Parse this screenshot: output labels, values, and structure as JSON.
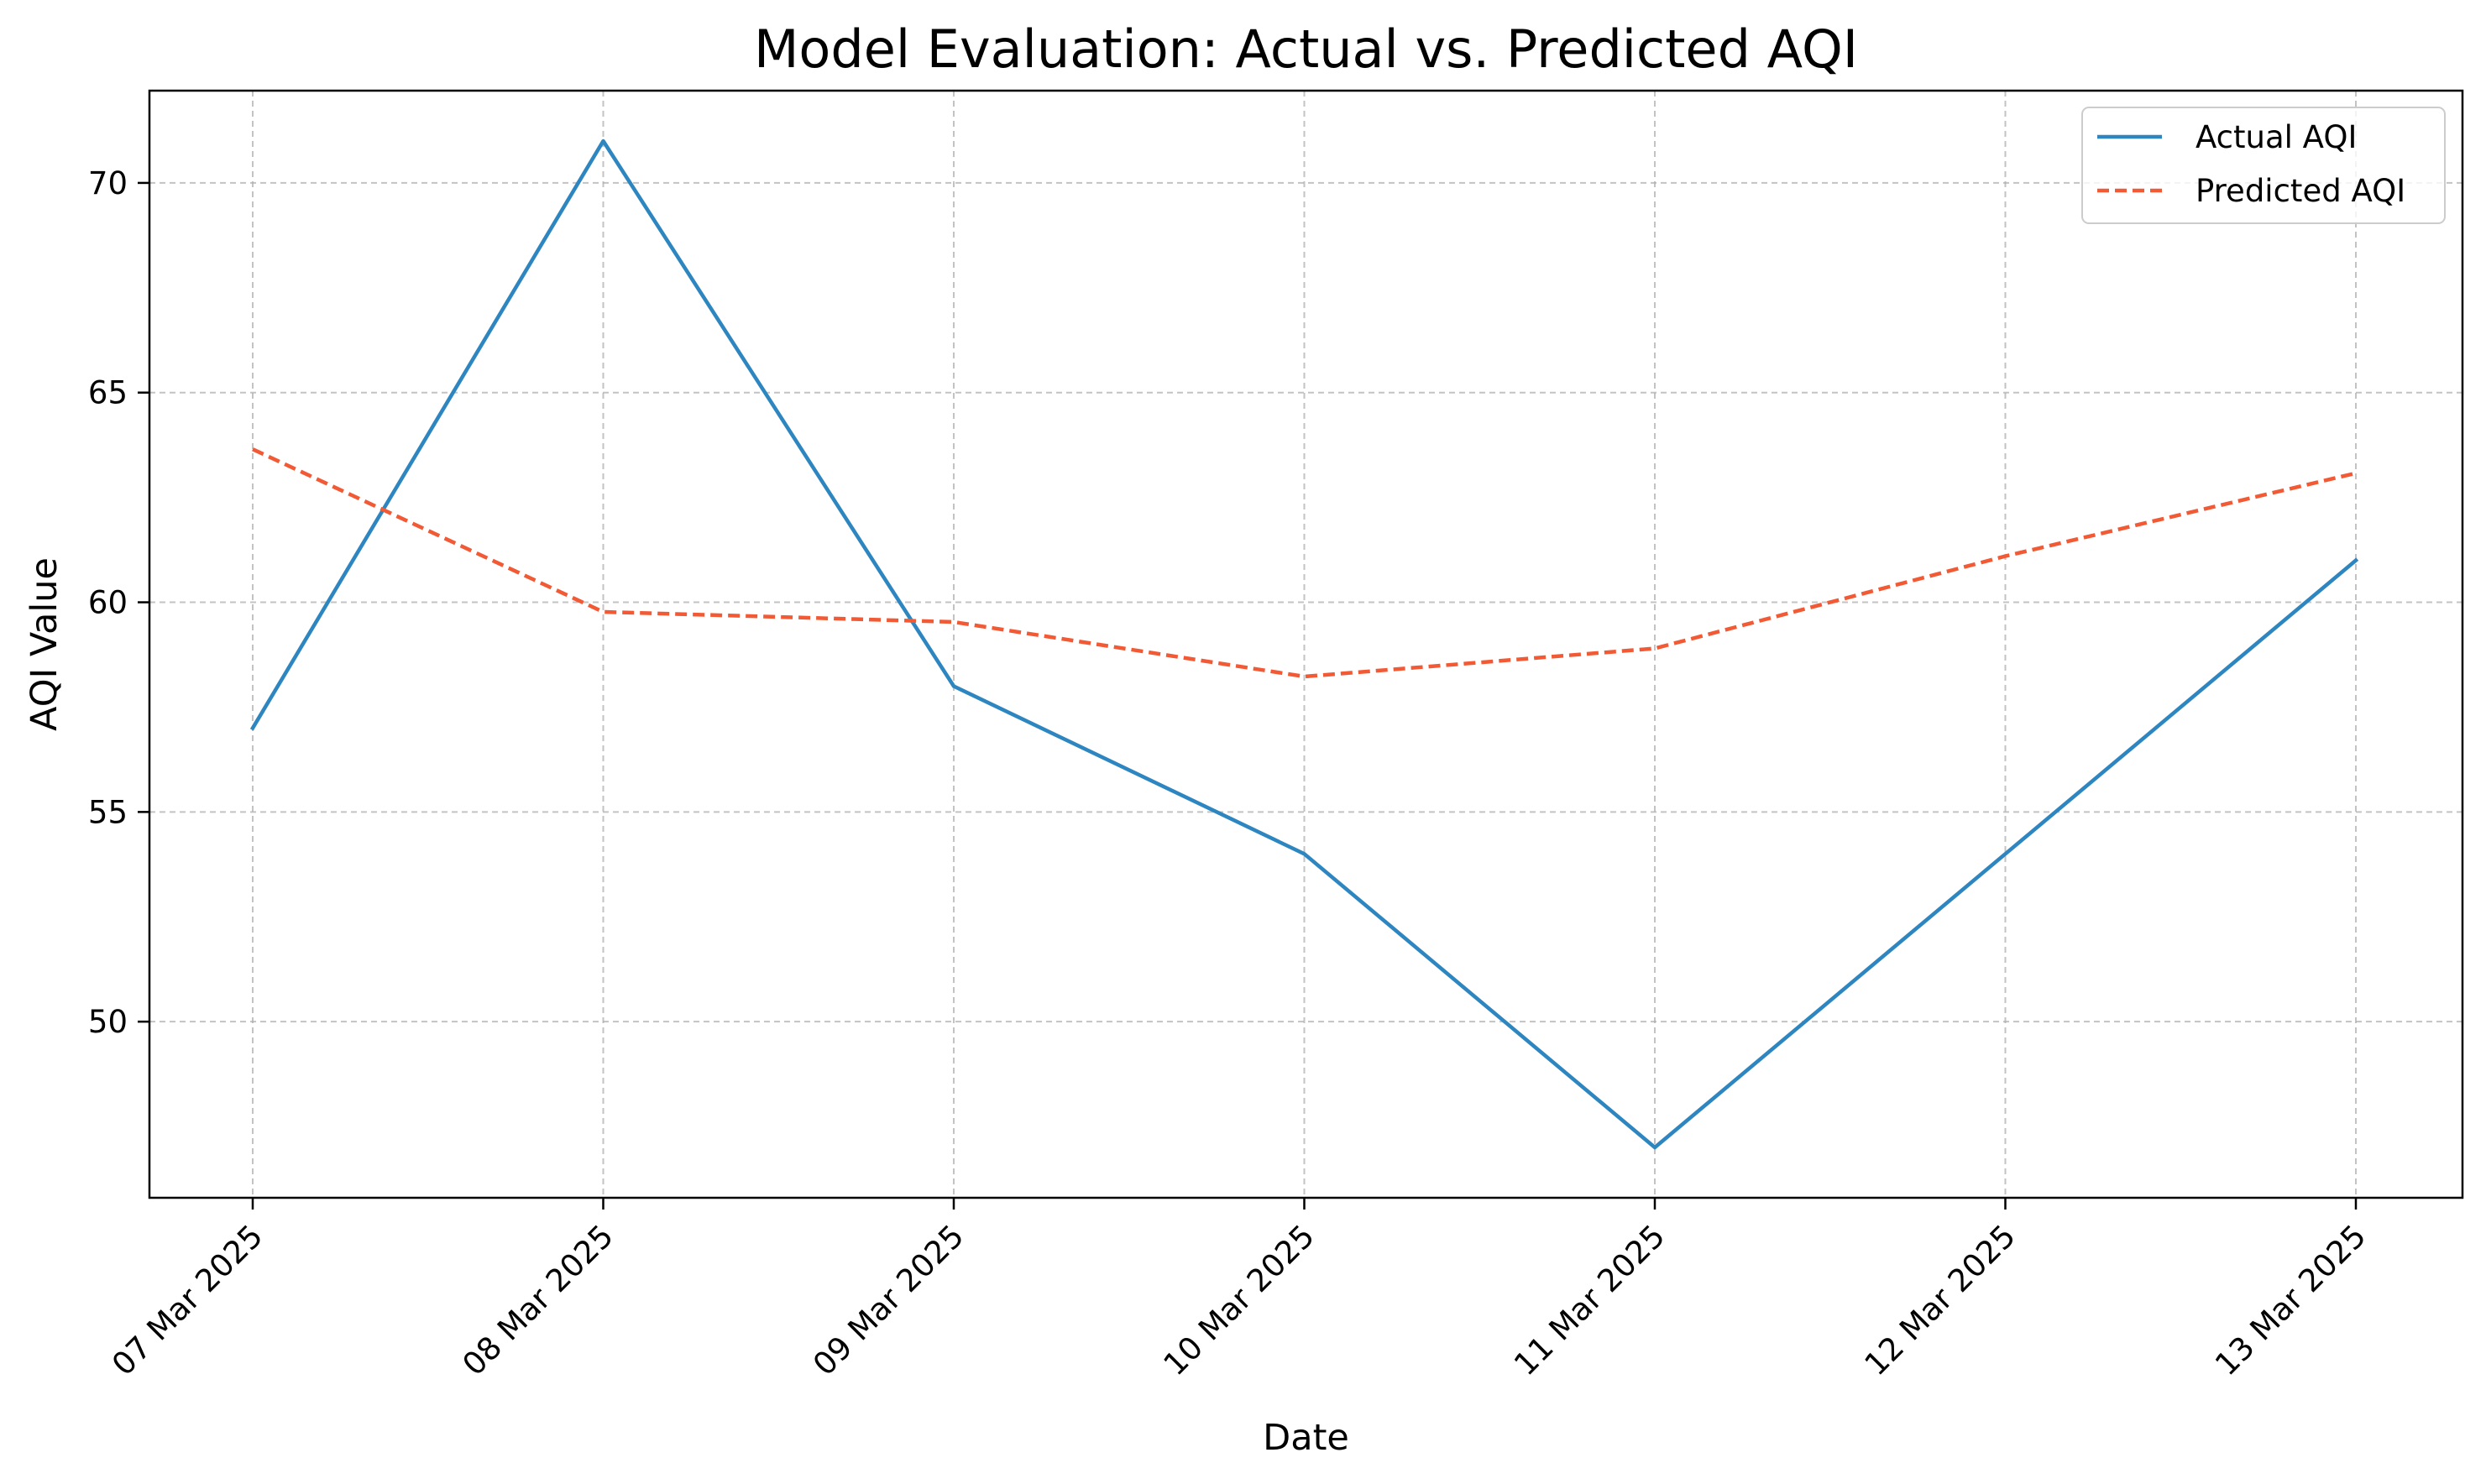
{
  "chart_data": {
    "type": "line",
    "title": "Model Evaluation: Actual vs. Predicted AQI",
    "xlabel": "Date",
    "ylabel": "AQI Value",
    "x": [
      "07 Mar 2025",
      "08 Mar 2025",
      "09 Mar 2025",
      "10 Mar 2025",
      "11 Mar 2025",
      "12 Mar 2025",
      "13 Mar 2025"
    ],
    "yticks": [
      50,
      55,
      60,
      65,
      70
    ],
    "ylim": [
      45.8,
      72.2
    ],
    "grid": true,
    "legend_position": "top-right",
    "series": [
      {
        "name": "Actual AQI",
        "values": [
          57,
          71,
          58,
          54,
          47,
          54,
          61
        ],
        "color": "#2e86c1",
        "style": "solid"
      },
      {
        "name": "Predicted AQI",
        "values": [
          63.65,
          59.77,
          59.53,
          58.23,
          58.9,
          61.1,
          63.08
        ],
        "color": "#f15a35",
        "style": "dashed"
      }
    ]
  }
}
